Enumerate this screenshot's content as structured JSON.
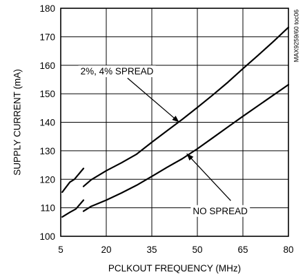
{
  "chart_data": {
    "type": "line",
    "title": "",
    "xlabel": "PCLKOUT FREQUENCY (MHz)",
    "ylabel": "SUPPLY CURRENT (mA)",
    "xlim": [
      5,
      80
    ],
    "ylim": [
      100,
      180
    ],
    "x_ticks": [
      5,
      20,
      35,
      50,
      65,
      80
    ],
    "y_ticks": [
      100,
      110,
      120,
      130,
      140,
      150,
      160,
      170,
      180
    ],
    "grid": true,
    "legend": "none",
    "line_color": "#000000",
    "series": [
      {
        "segments": [
          {
            "x": [
              5.5,
              8,
              9.5,
              12.5
            ],
            "y": [
              115.5,
              119,
              120,
              123.8
            ]
          },
          {
            "x": [
              12.5,
              15,
              20,
              25,
              30,
              35,
              40,
              45,
              50,
              55,
              60,
              65,
              70,
              75,
              80
            ],
            "y": [
              117.5,
              119.8,
              123,
              125.8,
              128.8,
              133,
              137,
              141,
              145.2,
              149.5,
              154,
              158.8,
              163.5,
              168.3,
              173.3
            ]
          }
        ]
      },
      {
        "segments": [
          {
            "x": [
              5.5,
              8,
              10,
              12.5
            ],
            "y": [
              106.8,
              108.4,
              109.6,
              112.7
            ]
          },
          {
            "x": [
              12.5,
              15,
              20,
              25,
              30,
              35,
              40,
              45,
              50,
              55,
              60,
              65,
              70,
              75,
              80
            ],
            "y": [
              108.8,
              110.5,
              112.7,
              115.2,
              117.9,
              121,
              124.2,
              127.2,
              130.7,
              134.5,
              138.3,
              142.1,
              145.8,
              149.5,
              153.2
            ]
          }
        ]
      }
    ],
    "annotations": [
      {
        "text": "2%, 4% SPREAD",
        "label_x": 11.5,
        "label_y": 158,
        "arrow_from": [
          27,
          155.5
        ],
        "arrow_to": [
          44,
          140
        ]
      },
      {
        "text": "NO SPREAD",
        "label_x": 48.5,
        "label_y": 109,
        "arrow_from": [
          61,
          112.5
        ],
        "arrow_to": [
          46.5,
          129
        ]
      }
    ],
    "side_label": "MAX9259/60 toc06"
  }
}
